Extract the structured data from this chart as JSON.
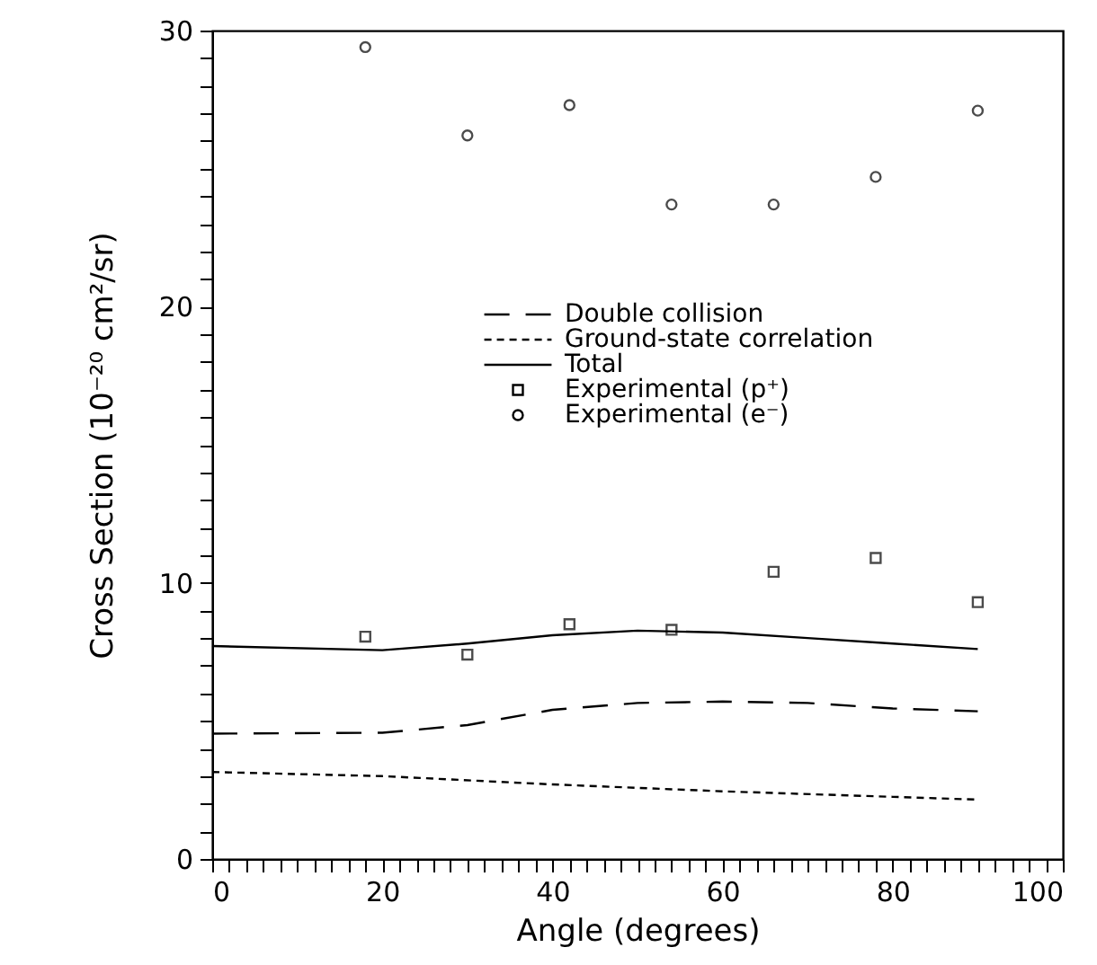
{
  "chart_data": {
    "type": "line",
    "xlabel": "Angle (degrees)",
    "ylabel": "Cross Section (10⁻²⁰ cm²/sr)",
    "xlim": [
      0,
      100
    ],
    "ylim": [
      0,
      30
    ],
    "xticks": [
      0,
      {
        "value": 2,
        "label": null
      },
      {
        "value": 4,
        "label": null
      },
      {
        "value": 6,
        "label": null
      },
      {
        "value": 8,
        "label": null
      },
      {
        "value": 10,
        "label": null
      },
      {
        "value": 12,
        "label": null
      },
      {
        "value": 14,
        "label": null
      },
      {
        "value": 16,
        "label": null
      },
      {
        "value": 18,
        "label": null
      },
      20,
      {
        "value": 22,
        "label": null
      },
      {
        "value": 24,
        "label": null
      },
      {
        "value": 26,
        "label": null
      },
      {
        "value": 28,
        "label": null
      },
      {
        "value": 30,
        "label": null
      },
      {
        "value": 32,
        "label": null
      },
      {
        "value": 34,
        "label": null
      },
      {
        "value": 36,
        "label": null
      },
      {
        "value": 38,
        "label": null
      },
      40,
      {
        "value": 42,
        "label": null
      },
      {
        "value": 44,
        "label": null
      },
      {
        "value": 46,
        "label": null
      },
      {
        "value": 48,
        "label": null
      },
      {
        "value": 50,
        "label": null
      },
      {
        "value": 52,
        "label": null
      },
      {
        "value": 54,
        "label": null
      },
      {
        "value": 56,
        "label": null
      },
      {
        "value": 58,
        "label": null
      },
      60,
      {
        "value": 62,
        "label": null
      },
      {
        "value": 64,
        "label": null
      },
      {
        "value": 66,
        "label": null
      },
      {
        "value": 68,
        "label": null
      },
      {
        "value": 70,
        "label": null
      },
      {
        "value": 72,
        "label": null
      },
      {
        "value": 74,
        "label": null
      },
      {
        "value": 76,
        "label": null
      },
      {
        "value": 78,
        "label": null
      },
      80,
      {
        "value": 82,
        "label": null
      },
      {
        "value": 84,
        "label": null
      },
      {
        "value": 86,
        "label": null
      },
      {
        "value": 88,
        "label": null
      },
      {
        "value": 90,
        "label": null
      },
      {
        "value": 92,
        "label": null
      },
      {
        "value": 94,
        "label": null
      },
      {
        "value": 96,
        "label": null
      },
      {
        "value": 98,
        "label": null
      },
      100
    ],
    "yticks": [
      0,
      {
        "value": 1,
        "label": null
      },
      {
        "value": 2,
        "label": null
      },
      {
        "value": 3,
        "label": null
      },
      {
        "value": 4,
        "label": null
      },
      {
        "value": 5,
        "label": null
      },
      {
        "value": 6,
        "label": null
      },
      {
        "value": 7,
        "label": null
      },
      {
        "value": 8,
        "label": null
      },
      {
        "value": 9,
        "label": null
      },
      10,
      {
        "value": 11,
        "label": null
      },
      {
        "value": 12,
        "label": null
      },
      {
        "value": 13,
        "label": null
      },
      {
        "value": 14,
        "label": null
      },
      {
        "value": 15,
        "label": null
      },
      {
        "value": 16,
        "label": null
      },
      {
        "value": 17,
        "label": null
      },
      {
        "value": 18,
        "label": null
      },
      {
        "value": 19,
        "label": null
      },
      20,
      {
        "value": 21,
        "label": null
      },
      {
        "value": 22,
        "label": null
      },
      {
        "value": 23,
        "label": null
      },
      {
        "value": 24,
        "label": null
      },
      {
        "value": 25,
        "label": null
      },
      {
        "value": 26,
        "label": null
      },
      {
        "value": 27,
        "label": null
      },
      {
        "value": 28,
        "label": null
      },
      {
        "value": 29,
        "label": null
      },
      30
    ],
    "legend": "right",
    "series": [
      {
        "name": "Double collision",
        "type": "line",
        "line_style": "dashed",
        "color": "#000000",
        "x": [
          0,
          20,
          30,
          40,
          50,
          60,
          70,
          80,
          90
        ],
        "values": [
          4.54,
          4.57,
          4.85,
          5.4,
          5.65,
          5.7,
          5.65,
          5.45,
          5.35
        ]
      },
      {
        "name": "Ground-state correlation",
        "type": "line",
        "line_style": "dotted",
        "color": "#000000",
        "x": [
          0,
          20,
          40,
          60,
          80,
          90
        ],
        "values": [
          3.15,
          3.0,
          2.7,
          2.45,
          2.25,
          2.15
        ]
      },
      {
        "name": "Total",
        "type": "line",
        "line_style": "solid",
        "color": "#000000",
        "x": [
          0,
          20,
          30,
          40,
          50,
          60,
          70,
          80,
          90
        ],
        "values": [
          7.71,
          7.56,
          7.8,
          8.1,
          8.27,
          8.2,
          8.0,
          7.8,
          7.6
        ]
      },
      {
        "name": "Experimental (p⁺)",
        "type": "scatter",
        "marker": "square",
        "color": "#000000",
        "x": [
          18,
          30,
          42,
          54,
          66,
          78,
          90
        ],
        "values": [
          8.05,
          7.4,
          8.5,
          8.3,
          10.4,
          10.9,
          9.3
        ]
      },
      {
        "name": "Experimental (e⁻)",
        "type": "scatter",
        "marker": "circle",
        "color": "#000000",
        "x": [
          18,
          30,
          42,
          54,
          66,
          78,
          90
        ],
        "values": [
          29.4,
          26.2,
          27.3,
          23.7,
          23.7,
          24.7,
          27.1
        ]
      }
    ]
  }
}
